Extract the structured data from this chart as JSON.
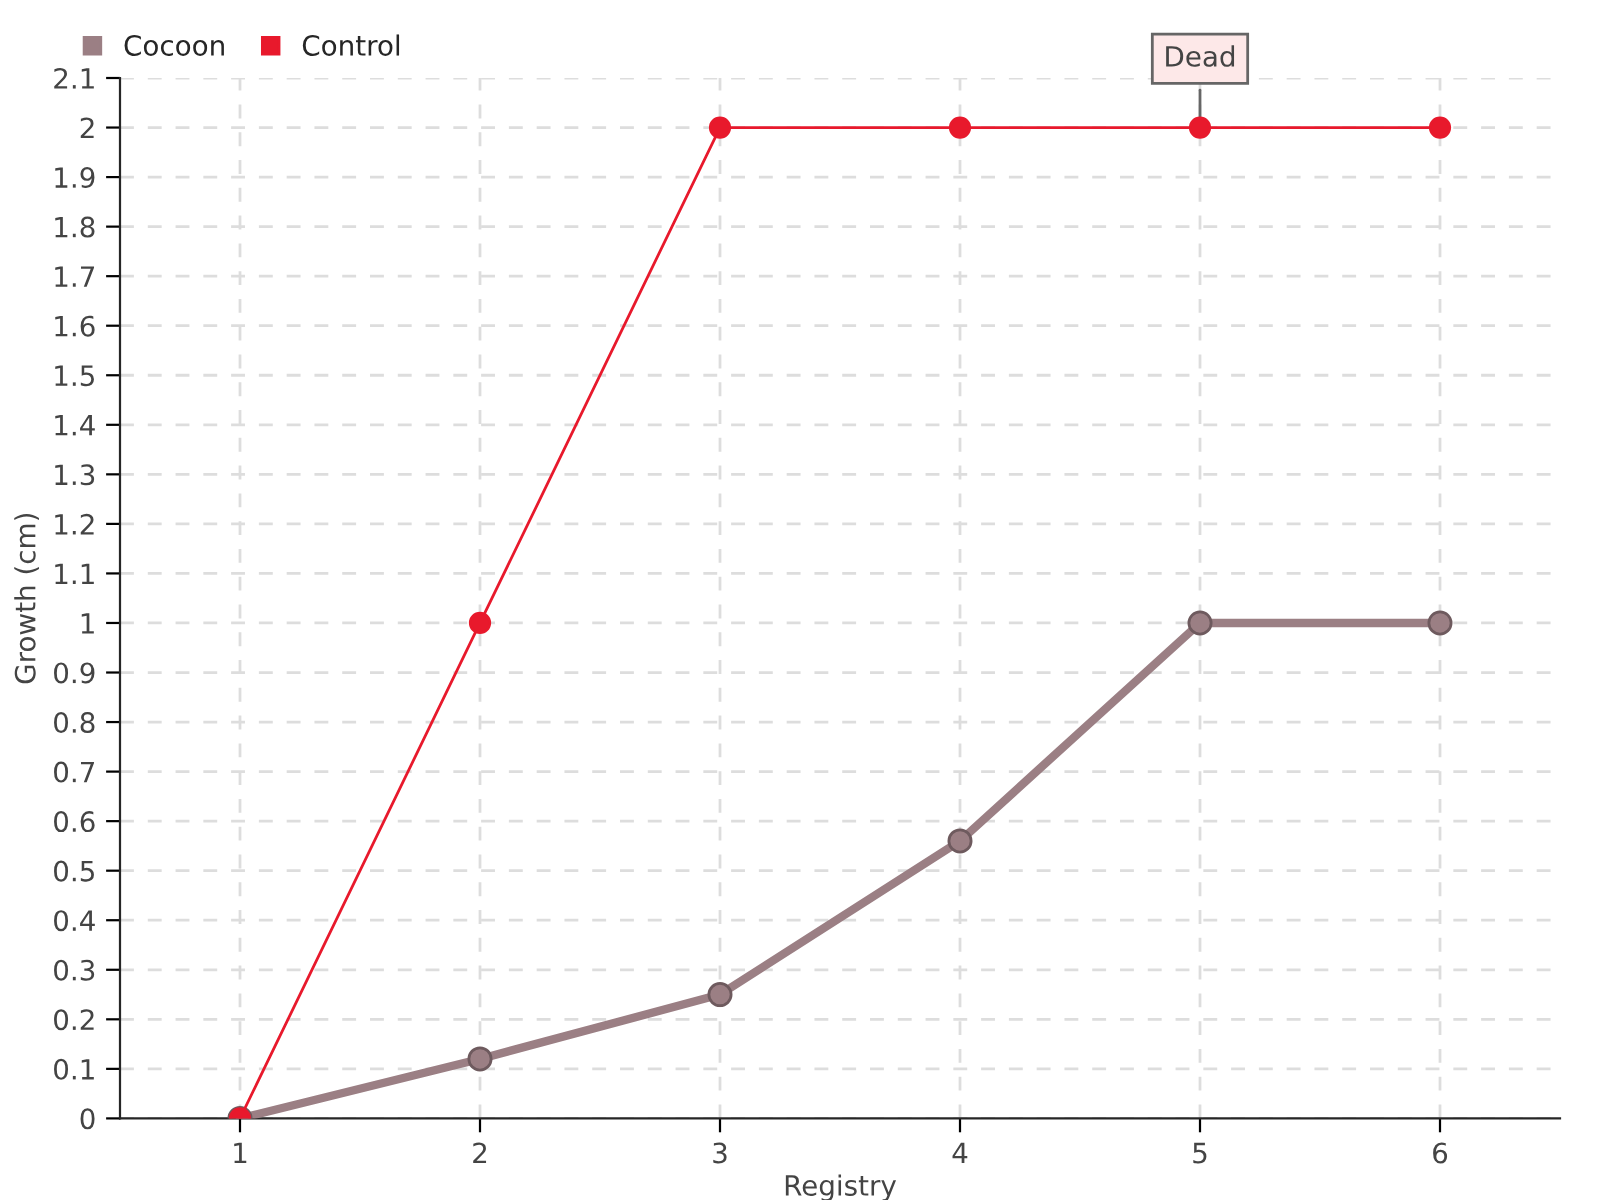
{
  "chart_data": {
    "type": "line",
    "xlabel": "Registry",
    "ylabel": "Growth (cm)",
    "categories": [
      "1",
      "2",
      "3",
      "4",
      "5",
      "6"
    ],
    "series": [
      {
        "name": "Cocoon",
        "color": "#9b7f84",
        "values": [
          0,
          0.12,
          0.25,
          0.56,
          1,
          1
        ]
      },
      {
        "name": "Control",
        "color": "#e8192c",
        "values": [
          0,
          1,
          2,
          2,
          2,
          2
        ]
      }
    ],
    "ylim": [
      0,
      2.1
    ],
    "yticks": [
      0,
      0.1,
      0.2,
      0.3,
      0.4,
      0.5,
      0.6,
      0.7,
      0.8,
      0.9,
      1,
      1.1,
      1.2,
      1.3,
      1.4,
      1.5,
      1.6,
      1.7,
      1.8,
      1.9,
      2,
      2.1
    ],
    "annotations": [
      {
        "text": "Dead",
        "x": "5",
        "y": 2
      }
    ],
    "grid": true,
    "legend": "top left",
    "marker": "circle",
    "line_style": "solid"
  }
}
